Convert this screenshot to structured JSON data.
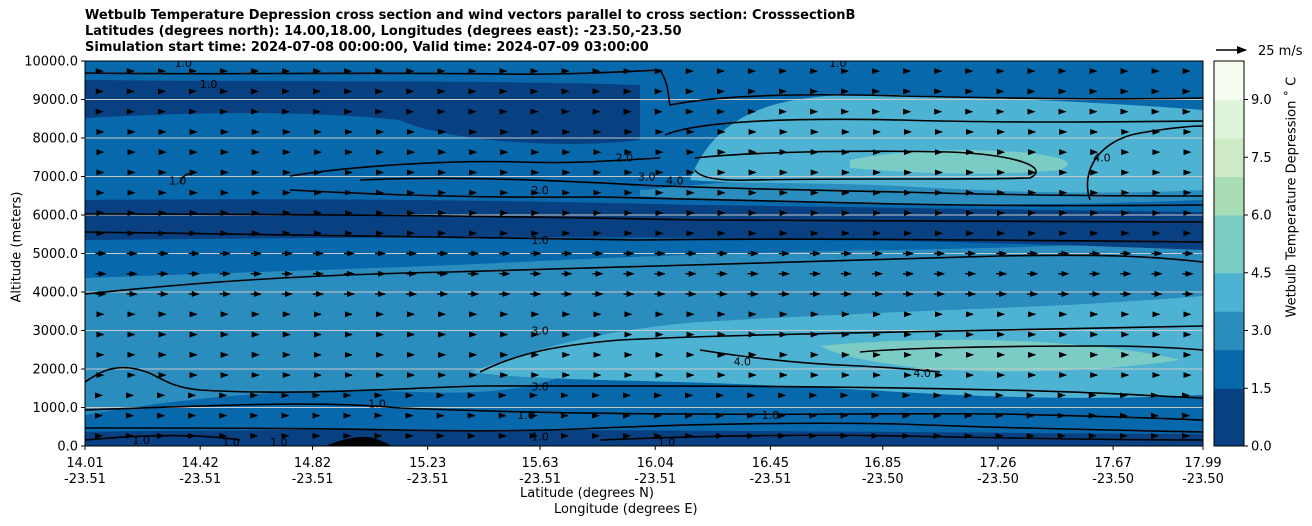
{
  "title": {
    "line1": "Wetbulb Temperature Depression cross section and wind vectors parallel to cross section: CrosssectionB",
    "line2": "Latitudes (degrees north): 14.00,18.00, Longitudes (degrees east): -23.50,-23.50",
    "line3": "Simulation start time: 2024-07-08 00:00:00, Valid time: 2024-07-09 03:00:00"
  },
  "quiver_key": "25 m/s",
  "colorbar_label": "Wetbulb Temperature Depression ˚ C",
  "chart_data": {
    "type": "heatmap",
    "title": "Wetbulb Temperature Depression cross section and wind vectors parallel to cross section: CrosssectionB",
    "ylabel": "Altitude (meters)",
    "xlabel_line1": "Latitude (degrees N)",
    "xlabel_line2": "Longitude (degrees E)",
    "ylim": [
      0,
      10000
    ],
    "y_ticks": [
      "0.0",
      "1000.0",
      "2000.0",
      "3000.0",
      "4000.0",
      "5000.0",
      "6000.0",
      "7000.0",
      "8000.0",
      "9000.0",
      "10000.0"
    ],
    "x_ticks": [
      {
        "lat": "14.01",
        "lon": "-23.51"
      },
      {
        "lat": "14.42",
        "lon": "-23.51"
      },
      {
        "lat": "14.82",
        "lon": "-23.51"
      },
      {
        "lat": "15.23",
        "lon": "-23.51"
      },
      {
        "lat": "15.63",
        "lon": "-23.51"
      },
      {
        "lat": "16.04",
        "lon": "-23.51"
      },
      {
        "lat": "16.45",
        "lon": "-23.51"
      },
      {
        "lat": "16.85",
        "lon": "-23.50"
      },
      {
        "lat": "17.26",
        "lon": "-23.50"
      },
      {
        "lat": "17.67",
        "lon": "-23.50"
      },
      {
        "lat": "17.99",
        "lon": "-23.50"
      }
    ],
    "x_range": [
      14.01,
      17.99
    ],
    "colorbar": {
      "min": 0.0,
      "max": 10.0,
      "ticks": [
        "0.0",
        "1.5",
        "3.0",
        "4.5",
        "6.0",
        "7.5",
        "9.0"
      ]
    },
    "colors": [
      "#084081",
      "#0868ac",
      "#2b8cbe",
      "#4eb3d3",
      "#7bccc4",
      "#a8ddb5",
      "#ccebc5",
      "#e0f3db",
      "#f7fcf0"
    ],
    "grid_y": true,
    "contour_levels": [
      "1.0",
      "2.0",
      "3.0",
      "4.0"
    ],
    "contour_labels": [
      {
        "text": "1.0",
        "lat": 15.63,
        "alt": 5350
      },
      {
        "text": "2.0",
        "lat": 15.63,
        "alt": 6650
      },
      {
        "text": "2.0",
        "lat": 15.93,
        "alt": 7500
      },
      {
        "text": "3.0",
        "lat": 16.01,
        "alt": 7000
      },
      {
        "text": "4.0",
        "lat": 16.11,
        "alt": 6900
      },
      {
        "text": "4.0",
        "lat": 17.63,
        "alt": 7500
      },
      {
        "text": "3.0",
        "lat": 15.63,
        "alt": 3000
      },
      {
        "text": "3.0",
        "lat": 15.63,
        "alt": 1550
      },
      {
        "text": "4.0",
        "lat": 16.35,
        "alt": 2200
      },
      {
        "text": "4.0",
        "lat": 16.99,
        "alt": 1900
      },
      {
        "text": "1.0",
        "lat": 15.63,
        "alt": 250
      },
      {
        "text": "1.0",
        "lat": 15.58,
        "alt": 800
      },
      {
        "text": "1.0",
        "lat": 16.45,
        "alt": 800
      },
      {
        "text": "1.0",
        "lat": 16.08,
        "alt": 100
      },
      {
        "text": "1.0",
        "lat": 14.21,
        "alt": 150
      },
      {
        "text": "1.0",
        "lat": 14.53,
        "alt": 100
      },
      {
        "text": "1.0",
        "lat": 14.7,
        "alt": 100
      },
      {
        "text": "1.0",
        "lat": 14.36,
        "alt": 9950
      },
      {
        "text": "1.0",
        "lat": 14.45,
        "alt": 9400
      },
      {
        "text": "1.0",
        "lat": 14.34,
        "alt": 6900
      },
      {
        "text": "1.0",
        "lat": 15.05,
        "alt": 1100
      },
      {
        "text": "1.0",
        "lat": 16.69,
        "alt": 9950
      }
    ],
    "wind_vectors": {
      "direction": "toward increasing latitude",
      "typical_speed_ms": 8,
      "reference_speed_ms": 25
    }
  }
}
